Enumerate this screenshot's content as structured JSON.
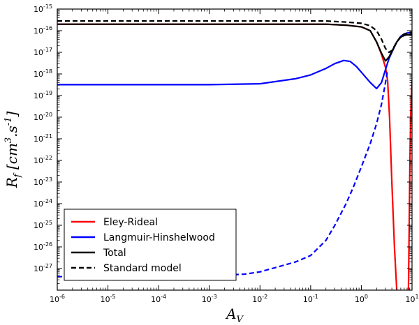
{
  "chart_data": {
    "type": "line",
    "title": "",
    "xlabel": "A_V",
    "ylabel": "R_f [cm^3.s^-1]",
    "x_scale": "log",
    "y_scale": "log",
    "xlim": [
      1e-06,
      10
    ],
    "ylim": [
      1e-28,
      1e-15
    ],
    "grid": false,
    "legend_position": "lower-left",
    "x_tick_labels": [
      {
        "base": "10",
        "exp": "-6"
      },
      {
        "base": "10",
        "exp": "-5"
      },
      {
        "base": "10",
        "exp": "-4"
      },
      {
        "base": "10",
        "exp": "-3"
      },
      {
        "base": "10",
        "exp": "-2"
      },
      {
        "base": "10",
        "exp": "-1"
      },
      {
        "base": "10",
        "exp": "0"
      },
      {
        "base": "10",
        "exp": "1"
      }
    ],
    "y_tick_labels": [
      {
        "base": "10",
        "exp": "-15"
      },
      {
        "base": "10",
        "exp": "-16"
      },
      {
        "base": "10",
        "exp": "-17"
      },
      {
        "base": "10",
        "exp": "-18"
      },
      {
        "base": "10",
        "exp": "-19"
      },
      {
        "base": "10",
        "exp": "-20"
      },
      {
        "base": "10",
        "exp": "-21"
      },
      {
        "base": "10",
        "exp": "-22"
      },
      {
        "base": "10",
        "exp": "-23"
      },
      {
        "base": "10",
        "exp": "-24"
      },
      {
        "base": "10",
        "exp": "-25"
      },
      {
        "base": "10",
        "exp": "-26"
      },
      {
        "base": "10",
        "exp": "-27"
      }
    ],
    "series": [
      {
        "name": "Eley-Rideal",
        "color": "#ff0000",
        "style": "solid",
        "points": [
          [
            1e-06,
            2e-16
          ],
          [
            0.001,
            2e-16
          ],
          [
            0.1,
            2e-16
          ],
          [
            0.2,
            2e-16
          ],
          [
            0.5,
            1.8e-16
          ],
          [
            1.0,
            1.5e-16
          ],
          [
            1.5,
            1e-16
          ],
          [
            2.0,
            3e-17
          ],
          [
            2.5,
            8e-18
          ],
          [
            3.0,
            2e-18
          ],
          [
            3.3,
            5e-19
          ],
          [
            3.6,
            1e-20
          ],
          [
            4.0,
            1e-23
          ],
          [
            4.5,
            1e-26
          ],
          [
            5.0,
            1e-28
          ]
        ]
      },
      {
        "name": "Langmuir-Hinshelwood",
        "color": "#0000ff",
        "style": "solid",
        "points": [
          [
            1e-06,
            3.2e-19
          ],
          [
            0.001,
            3.2e-19
          ],
          [
            0.01,
            3.5e-19
          ],
          [
            0.05,
            6e-19
          ],
          [
            0.1,
            9e-19
          ],
          [
            0.2,
            1.8e-18
          ],
          [
            0.3,
            3e-18
          ],
          [
            0.45,
            4.2e-18
          ],
          [
            0.6,
            3.8e-18
          ],
          [
            0.8,
            2.2e-18
          ],
          [
            1.0,
            1.2e-18
          ],
          [
            1.5,
            4e-19
          ],
          [
            2.0,
            2.1e-19
          ],
          [
            2.5,
            4e-19
          ],
          [
            3.0,
            1.6e-18
          ],
          [
            3.5,
            5e-18
          ],
          [
            4.0,
            1e-17
          ],
          [
            5.0,
            3e-17
          ],
          [
            6.0,
            5.5e-17
          ],
          [
            7.0,
            7e-17
          ],
          [
            8.0,
            7.8e-17
          ],
          [
            9.0,
            8e-17
          ],
          [
            10.0,
            8e-17
          ]
        ]
      },
      {
        "name": "Total",
        "color": "#000000",
        "style": "solid",
        "points": [
          [
            1e-06,
            2e-16
          ],
          [
            0.001,
            2e-16
          ],
          [
            0.1,
            2e-16
          ],
          [
            0.2,
            2e-16
          ],
          [
            0.5,
            1.8e-16
          ],
          [
            1.0,
            1.5e-16
          ],
          [
            1.5,
            1e-16
          ],
          [
            2.0,
            3e-17
          ],
          [
            2.5,
            9e-18
          ],
          [
            3.0,
            4e-18
          ],
          [
            3.5,
            6e-18
          ],
          [
            4.0,
            1.1e-17
          ],
          [
            5.0,
            3e-17
          ],
          [
            6.0,
            5e-17
          ],
          [
            7.0,
            6e-17
          ],
          [
            8.0,
            6.5e-17
          ],
          [
            9.0,
            6.4e-17
          ],
          [
            10.0,
            6.4e-17
          ]
        ]
      },
      {
        "name": "Standard model",
        "color": "#000000",
        "style": "dashed",
        "points": [
          [
            1e-06,
            2.8e-16
          ],
          [
            0.001,
            2.8e-16
          ],
          [
            0.1,
            2.8e-16
          ],
          [
            0.2,
            2.8e-16
          ],
          [
            0.5,
            2.5e-16
          ],
          [
            1.0,
            2.2e-16
          ],
          [
            1.5,
            1.7e-16
          ],
          [
            2.0,
            1e-16
          ],
          [
            2.5,
            4e-17
          ],
          [
            3.0,
            1.5e-17
          ],
          [
            3.5,
            1e-17
          ],
          [
            4.0,
            1.2e-17
          ],
          [
            5.0,
            3e-17
          ],
          [
            6.0,
            5.5e-17
          ],
          [
            7.0,
            7e-17
          ],
          [
            8.0,
            7.8e-17
          ],
          [
            9.0,
            8e-17
          ],
          [
            10.0,
            8e-17
          ]
        ]
      },
      {
        "name": "Eley-Rideal (high A_V)",
        "color": "#ff0000",
        "style": "solid",
        "legend": false,
        "points": [
          [
            8.5,
            1e-28
          ],
          [
            8.8,
            1e-25
          ],
          [
            9.1,
            1e-22
          ],
          [
            9.4,
            1e-20
          ],
          [
            9.7,
            1e-19
          ],
          [
            10.0,
            5e-19
          ]
        ]
      },
      {
        "name": "Langmuir-Hinshelwood standard model",
        "color": "#0000ff",
        "style": "dashed",
        "legend": false,
        "points": [
          [
            1e-06,
            4.2e-28
          ],
          [
            0.0001,
            4.2e-28
          ],
          [
            0.001,
            4.5e-28
          ],
          [
            0.005,
            5.5e-28
          ],
          [
            0.01,
            7e-28
          ],
          [
            0.05,
            2e-27
          ],
          [
            0.1,
            4e-27
          ],
          [
            0.2,
            2e-26
          ],
          [
            0.3,
            1e-25
          ],
          [
            0.5,
            1e-24
          ],
          [
            0.7,
            6e-24
          ],
          [
            1.0,
            5e-23
          ],
          [
            1.5,
            6e-22
          ],
          [
            2.0,
            5e-21
          ],
          [
            2.5,
            4e-20
          ],
          [
            3.0,
            4e-19
          ],
          [
            3.3,
            1.5e-18
          ]
        ]
      }
    ]
  }
}
